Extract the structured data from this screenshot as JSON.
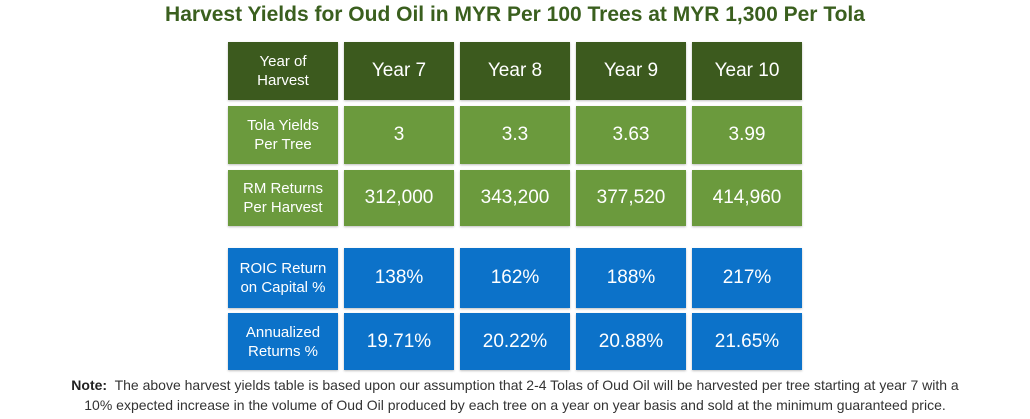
{
  "title": "Harvest Yields for Oud Oil in MYR Per 100 Trees at MYR 1,300 Per Tola",
  "colors": {
    "title": "#3a5f1e",
    "header_bg": "#3c5a1e",
    "green_bg": "#6b9a3d",
    "blue_bg": "#0c72c9"
  },
  "table": {
    "header": {
      "label": "Year of Harvest",
      "years": [
        "Year 7",
        "Year 8",
        "Year 9",
        "Year 10"
      ]
    },
    "rows": [
      {
        "label": "Tola Yields Per Tree",
        "values": [
          "3",
          "3.3",
          "3.63",
          "3.99"
        ]
      },
      {
        "label": "RM Returns Per Harvest",
        "values": [
          "312,000",
          "343,200",
          "377,520",
          "414,960"
        ]
      },
      {
        "label": "ROIC Return on Capital %",
        "values": [
          "138%",
          "162%",
          "188%",
          "217%"
        ]
      },
      {
        "label": "Annualized Returns %",
        "values": [
          "19.71%",
          "20.22%",
          "20.88%",
          "21.65%"
        ]
      }
    ]
  },
  "note": {
    "label": "Note:",
    "line1": "The above harvest yields table is based upon our assumption that 2-4 Tolas of Oud Oil will be harvested per tree starting at year 7 with a",
    "line2": "10% expected increase in the volume of Oud Oil produced by each tree on a year on year basis and sold at the minimum guaranteed price."
  }
}
